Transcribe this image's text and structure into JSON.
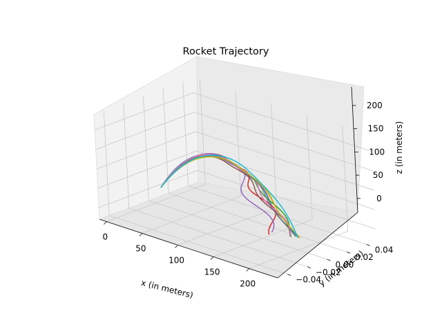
{
  "chart_data": {
    "type": "line",
    "projection": "3d",
    "title": "Rocket Trajectory",
    "xlabel": "x (in meters)",
    "ylabel": "y (in meters)",
    "zlabel": "z (in meters)",
    "x_ticks": [
      "0",
      "50",
      "100",
      "150",
      "200"
    ],
    "y_ticks": [
      "−0.04",
      "−0.02",
      "0.00",
      "0.02",
      "0.04"
    ],
    "z_ticks": [
      "0",
      "50",
      "100",
      "150",
      "200"
    ],
    "xlim": [
      -10,
      240
    ],
    "ylim": [
      -0.05,
      0.05
    ],
    "zlim": [
      -30,
      240
    ],
    "grid": true,
    "line_colors": [
      "#1f77b4",
      "#ff7f0e",
      "#2ca02c",
      "#d62728",
      "#9467bd",
      "#8c564b",
      "#e377c2",
      "#7f7f7f",
      "#bcbd22",
      "#17becf"
    ],
    "pane_color": "#f2f2f2",
    "grid_color": "#c8c8c8"
  }
}
